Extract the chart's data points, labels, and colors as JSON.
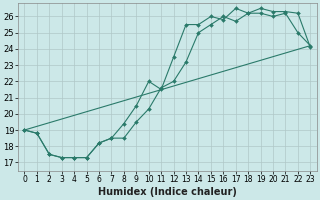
{
  "xlabel": "Humidex (Indice chaleur)",
  "background_color": "#cce8e8",
  "grid_color": "#b0c8c8",
  "line_color": "#2a7a6a",
  "xlim": [
    -0.5,
    23.5
  ],
  "ylim": [
    16.5,
    26.8
  ],
  "xtick_labels": [
    "0",
    "1",
    "2",
    "3",
    "4",
    "5",
    "6",
    "7",
    "8",
    "9",
    "10",
    "11",
    "12",
    "13",
    "14",
    "15",
    "16",
    "17",
    "18",
    "19",
    "20",
    "21",
    "22",
    "23"
  ],
  "ytick_labels": [
    "17",
    "18",
    "19",
    "20",
    "21",
    "22",
    "23",
    "24",
    "25",
    "26"
  ],
  "ytick_vals": [
    17,
    18,
    19,
    20,
    21,
    22,
    23,
    24,
    25,
    26
  ],
  "line1_x": [
    0,
    1,
    2,
    3,
    4,
    5,
    6,
    7,
    8,
    9,
    10,
    11,
    12,
    13,
    14,
    15,
    16,
    17,
    18,
    19,
    20,
    21,
    22,
    23
  ],
  "line1_y": [
    19.0,
    18.8,
    17.5,
    17.3,
    17.3,
    17.3,
    18.2,
    18.5,
    18.5,
    19.5,
    20.3,
    21.6,
    22.0,
    23.2,
    25.0,
    25.5,
    26.0,
    25.7,
    26.2,
    26.5,
    26.3,
    26.3,
    26.2,
    24.1
  ],
  "line2_x": [
    0,
    1,
    2,
    3,
    4,
    5,
    6,
    7,
    8,
    9,
    10,
    11,
    12,
    13,
    14,
    15,
    16,
    17,
    18,
    19,
    20,
    21,
    22,
    23
  ],
  "line2_y": [
    19.0,
    18.8,
    17.5,
    17.3,
    17.3,
    17.3,
    18.2,
    18.5,
    19.4,
    20.5,
    22.0,
    21.5,
    23.5,
    25.5,
    25.5,
    26.0,
    25.8,
    26.5,
    26.2,
    26.2,
    26.0,
    26.2,
    25.0,
    24.2
  ],
  "line3_x": [
    0,
    23
  ],
  "line3_y": [
    19.0,
    24.2
  ],
  "xlabel_fontsize": 7,
  "tick_fontsize": 5.5,
  "ytick_fontsize": 6
}
